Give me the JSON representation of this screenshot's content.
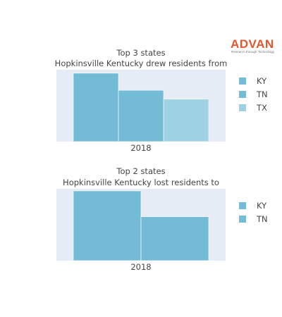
{
  "logo": {
    "name": "ADVAN",
    "tagline": "Research through Technology",
    "color": "#e4572e"
  },
  "chart_data": [
    {
      "type": "bar",
      "title": "Top 3 states",
      "subtitle": "Hopkinsville Kentucky drew residents from",
      "categories": [
        "2018"
      ],
      "series": [
        {
          "name": "KY",
          "values": [
            100
          ],
          "color": "#74bcd6"
        },
        {
          "name": "TN",
          "values": [
            75
          ],
          "color": "#74bcd6"
        },
        {
          "name": "TX",
          "values": [
            62
          ],
          "color": "#9ed2e2"
        }
      ],
      "ylim": [
        0,
        105
      ],
      "grid": false,
      "legend_position": "right"
    },
    {
      "type": "bar",
      "title": "Top 2 states",
      "subtitle": "Hopkinsville Kentucky lost residents to",
      "categories": [
        "2018"
      ],
      "series": [
        {
          "name": "KY",
          "values": [
            100
          ],
          "color": "#74bcd6"
        },
        {
          "name": "TN",
          "values": [
            63
          ],
          "color": "#74bcd6"
        }
      ],
      "ylim": [
        0,
        103
      ],
      "grid": false,
      "legend_position": "right"
    }
  ]
}
